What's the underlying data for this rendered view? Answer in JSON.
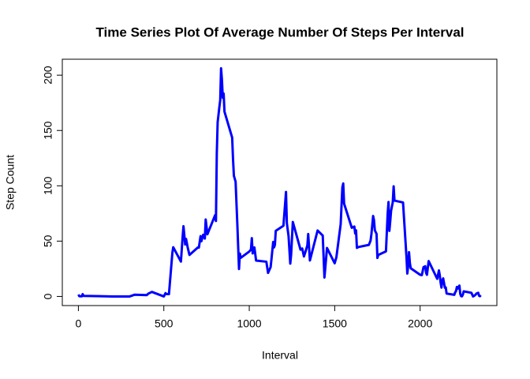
{
  "chart_data": {
    "type": "line",
    "title": "Time Series Plot Of Average Number Of Steps Per Interval",
    "x_label": "Interval",
    "y_label": "Step Count",
    "x": [
      0,
      5,
      10,
      15,
      20,
      25,
      30,
      100,
      200,
      300,
      330,
      400,
      410,
      430,
      500,
      510,
      515,
      530,
      550,
      555,
      600,
      610,
      615,
      625,
      630,
      640,
      650,
      700,
      705,
      715,
      720,
      730,
      740,
      745,
      755,
      800,
      805,
      810,
      815,
      825,
      830,
      835,
      840,
      845,
      850,
      855,
      900,
      905,
      910,
      920,
      930,
      935,
      940,
      945,
      950,
      1000,
      1010,
      1015,
      1020,
      1030,
      1040,
      1100,
      1110,
      1125,
      1130,
      1140,
      1145,
      1150,
      1155,
      1200,
      1210,
      1215,
      1220,
      1230,
      1240,
      1245,
      1255,
      1300,
      1310,
      1320,
      1330,
      1340,
      1345,
      1355,
      1400,
      1430,
      1440,
      1455,
      1500,
      1510,
      1535,
      1545,
      1550,
      1555,
      1600,
      1615,
      1620,
      1625,
      1630,
      1640,
      1700,
      1710,
      1715,
      1725,
      1730,
      1735,
      1745,
      1750,
      1755,
      1800,
      1810,
      1815,
      1820,
      1825,
      1830,
      1840,
      1845,
      1850,
      1900,
      1920,
      1925,
      1930,
      1935,
      1940,
      1945,
      2000,
      2010,
      2020,
      2030,
      2035,
      2040,
      2050,
      2100,
      2110,
      2115,
      2120,
      2125,
      2130,
      2135,
      2145,
      2150,
      2155,
      2200,
      2205,
      2210,
      2215,
      2220,
      2225,
      2230,
      2235,
      2240,
      2245,
      2250,
      2255,
      2300,
      2310,
      2320,
      2330,
      2340,
      2345,
      2350,
      2355
    ],
    "series": [
      {
        "name": "steps",
        "color": "#0000ff",
        "values": [
          1.7,
          0.3,
          0.1,
          0.2,
          0.1,
          2.1,
          0.5,
          0.3,
          0,
          0,
          1.6,
          1.2,
          2.6,
          4.1,
          0,
          3,
          2.2,
          2.1,
          39.5,
          44.5,
          31.5,
          53.8,
          63.5,
          47,
          52,
          44,
          37.5,
          44.4,
          44.1,
          54.5,
          49.9,
          55.7,
          52.3,
          69.5,
          56.2,
          73.4,
          68.2,
          129.4,
          157.5,
          171.2,
          177.3,
          206.2,
          195.9,
          179.6,
          183.4,
          167,
          143.5,
          124,
          109.1,
          103.7,
          66,
          45.2,
          24.8,
          38.8,
          34.9,
          40.6,
          42.4,
          52.7,
          38.9,
          44.3,
          32.4,
          31.4,
          21.3,
          26.5,
          33.8,
          49.2,
          44.3,
          46.6,
          59.3,
          63.9,
          84.2,
          94.4,
          66.3,
          54.5,
          29.7,
          37.7,
          67.3,
          42.3,
          43.3,
          36.1,
          40.9,
          46.1,
          56.4,
          32.5,
          59.6,
          55,
          17.1,
          43.8,
          30,
          35.5,
          65.3,
          98.7,
          102.1,
          83.9,
          62.1,
          63.2,
          56.9,
          59.8,
          43.9,
          44.7,
          46.6,
          50.5,
          56.5,
          72.7,
          68.9,
          59.7,
          56.5,
          34.8,
          37.5,
          40.7,
          74.7,
          85.3,
          59.3,
          67.8,
          77.4,
          85.3,
          99.5,
          86.6,
          84.9,
          36,
          20.7,
          27.4,
          40,
          30.2,
          25.5,
          19.6,
          19.3,
          26.5,
          27.3,
          21.3,
          19.6,
          32,
          15.9,
          23.5,
          19.2,
          12.5,
          8,
          14.7,
          16.3,
          7.8,
          8.1,
          2.6,
          1.5,
          3.7,
          4.8,
          8.5,
          7.1,
          8.7,
          9.8,
          2.2,
          0.3,
          0.1,
          1.6,
          4.6,
          3.3,
          0,
          0.96,
          2.6,
          3.3,
          0.6,
          0.2,
          1.1
        ]
      }
    ],
    "xlim": [
      -94.2,
      2449.2
    ],
    "ylim": [
      -8.25,
      214.4
    ],
    "xticks": [
      0,
      500,
      1000,
      1500,
      2000
    ],
    "yticks": [
      0,
      50,
      100,
      150,
      200
    ]
  }
}
